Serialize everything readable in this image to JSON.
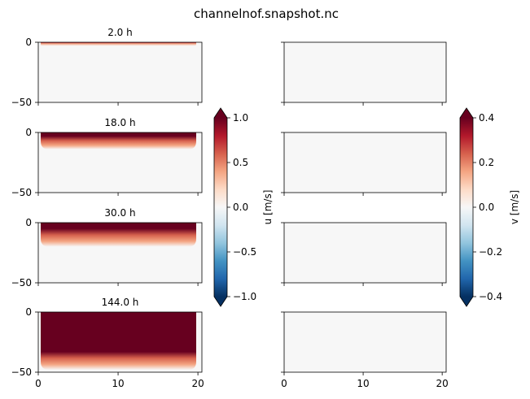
{
  "chart_data": {
    "type": "heatmap",
    "title": "channelnof.snapshot.nc",
    "x_ticks": [
      "0",
      "10",
      "20"
    ],
    "x_range": [
      0,
      20.5
    ],
    "y_ticks": [
      "0",
      "−50"
    ],
    "y_range": [
      -50,
      0
    ],
    "panels_left": [
      {
        "title": "2.0 h",
        "depth_of_max": 0,
        "penetration": 3
      },
      {
        "title": "18.0 h",
        "depth_of_max": 3,
        "penetration": 14
      },
      {
        "title": "30.0 h",
        "depth_of_max": 5,
        "penetration": 20
      },
      {
        "title": "144.0 h",
        "depth_of_max": 33,
        "penetration": 48
      }
    ],
    "panels_right": [
      {
        "title": ""
      },
      {
        "title": ""
      },
      {
        "title": ""
      },
      {
        "title": ""
      }
    ],
    "colorbar_u": {
      "label": "u [m/s]",
      "min": -1.0,
      "max": 1.0,
      "ticks": [
        "1.0",
        "0.5",
        "0.0",
        "−0.5",
        "−1.0"
      ]
    },
    "colorbar_v": {
      "label": "v [m/s]",
      "min": -0.4,
      "max": 0.4,
      "ticks": [
        "0.4",
        "0.2",
        "0.0",
        "−0.2",
        "−0.4"
      ]
    },
    "colormap": "RdBu_r",
    "colors": {
      "neutral": "#f7f7f7",
      "max": "#67001f",
      "min": "#053061"
    }
  }
}
